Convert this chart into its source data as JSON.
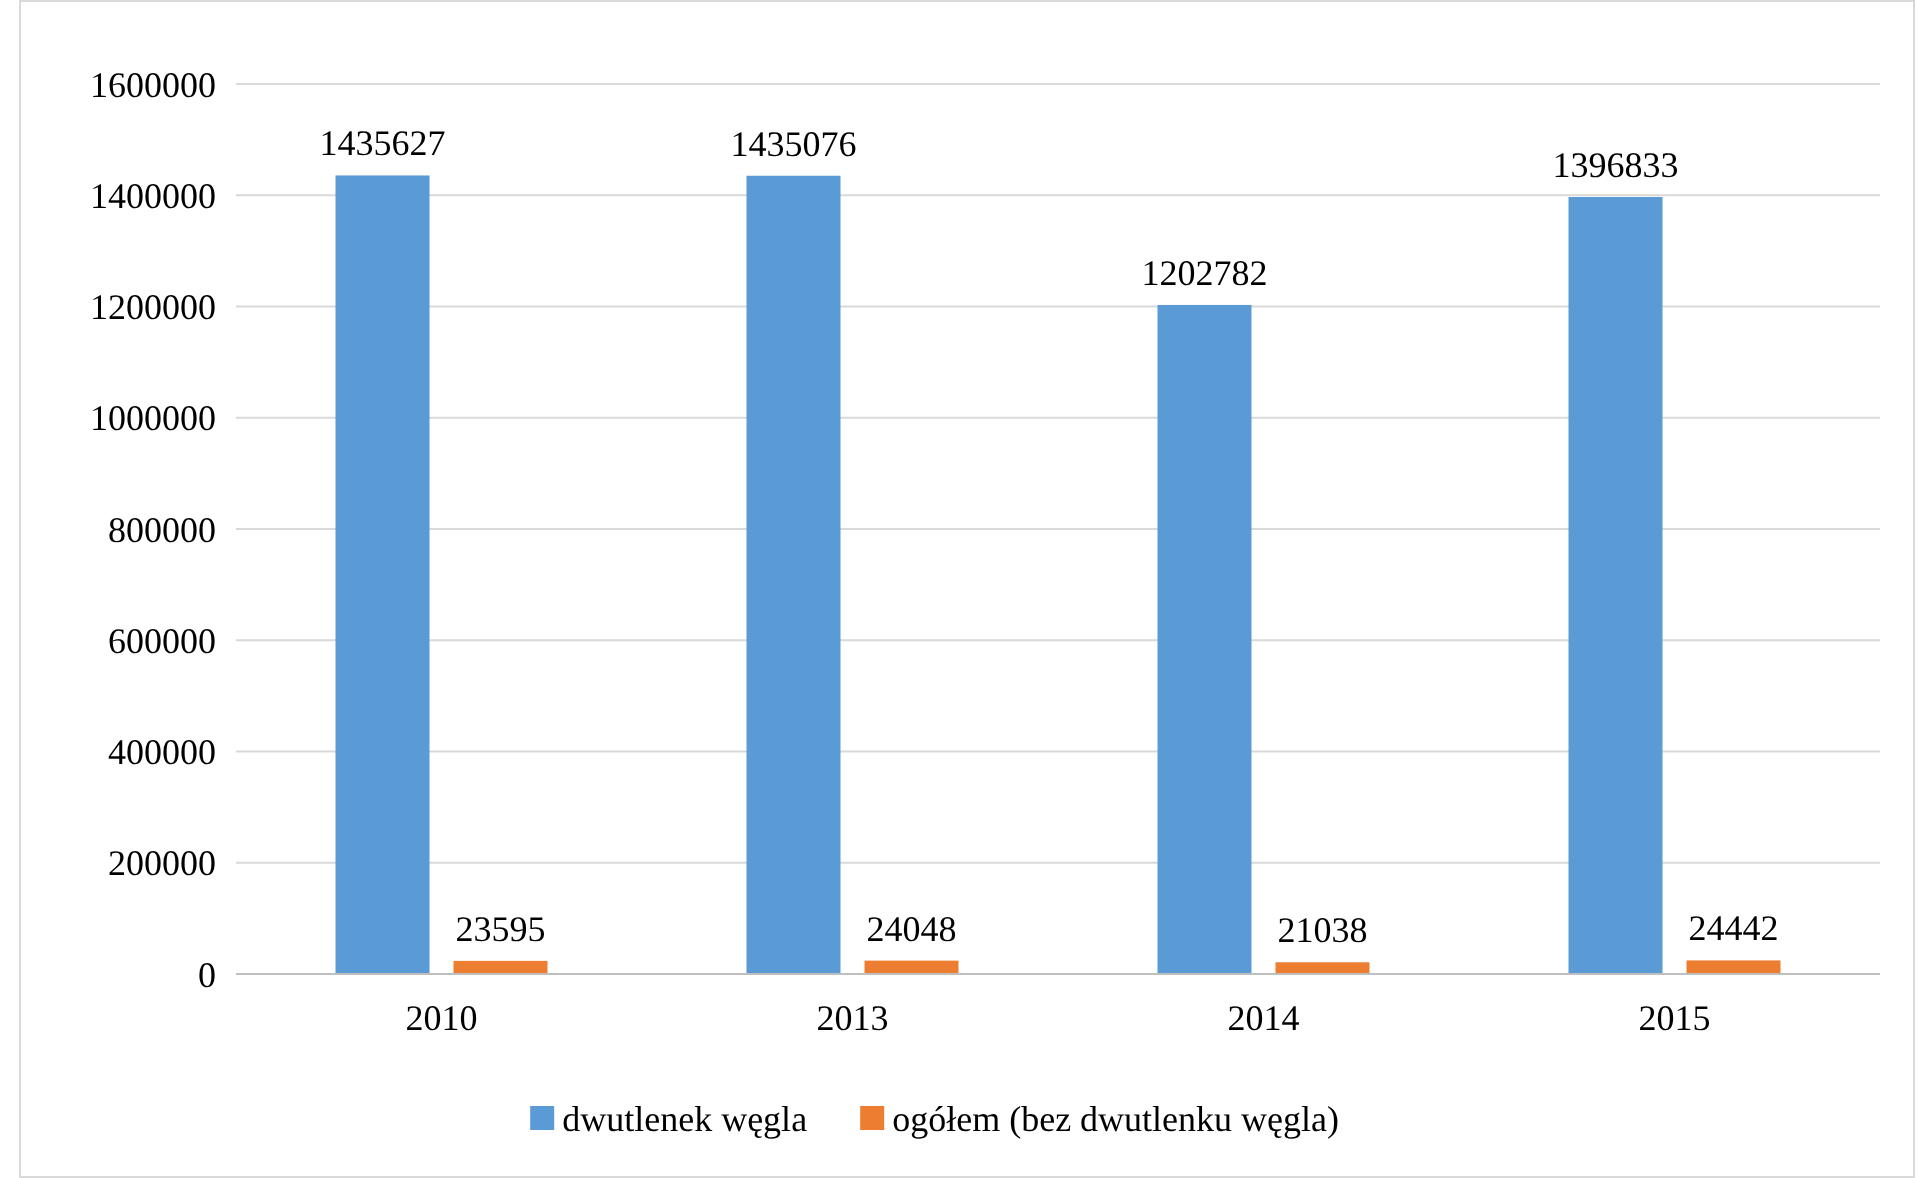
{
  "chart_data": {
    "type": "bar",
    "categories": [
      "2010",
      "2013",
      "2014",
      "2015"
    ],
    "series": [
      {
        "name": "dwutlenek węgla",
        "color": "#5b9bd5",
        "values": [
          1435627,
          1435076,
          1202782,
          1396833
        ]
      },
      {
        "name": "ogółem (bez dwutlenku węgla)",
        "color": "#ed7d31",
        "values": [
          23595,
          24048,
          21038,
          24442
        ]
      }
    ],
    "ylim": [
      0,
      1600000
    ],
    "yticks": [
      0,
      200000,
      400000,
      600000,
      800000,
      1000000,
      1200000,
      1400000,
      1600000
    ],
    "grid": "y",
    "legend": "bottom",
    "data_labels": true
  }
}
